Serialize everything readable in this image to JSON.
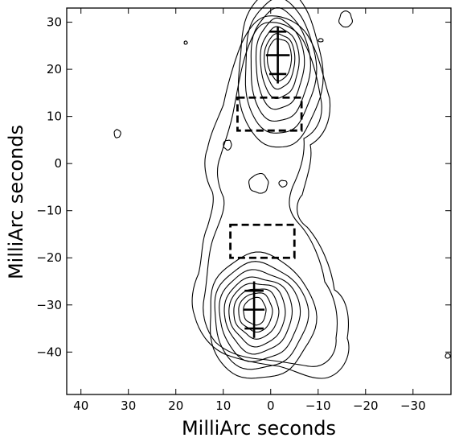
{
  "chart_data": {
    "type": "contour",
    "title": "",
    "xlabel": "MilliArc seconds",
    "ylabel": "MilliArc seconds",
    "xlim": [
      43,
      -38
    ],
    "ylim": [
      -49,
      33
    ],
    "x_ticks": [
      40,
      30,
      20,
      10,
      0,
      -10,
      -20,
      -30
    ],
    "y_ticks": [
      30,
      20,
      10,
      0,
      -10,
      -20,
      -30,
      -40
    ],
    "x_tick_labels": [
      "40",
      "30",
      "20",
      "10",
      "0",
      "−10",
      "−20",
      "−30"
    ],
    "y_tick_labels": [
      "30",
      "20",
      "10",
      "0",
      "−10",
      "−20",
      "−30",
      "−40"
    ],
    "grid": false,
    "components": [
      {
        "id": "north-core",
        "center": [
          -1.5,
          22.5
        ],
        "levels": 7
      },
      {
        "id": "south-core",
        "center": [
          3.5,
          -31.5
        ],
        "levels": 8
      }
    ],
    "regions": [
      {
        "id": "north-box",
        "x": [
          7,
          -6.5
        ],
        "y": [
          7,
          14
        ]
      },
      {
        "id": "south-box",
        "x": [
          8.5,
          -5
        ],
        "y": [
          -20,
          -13
        ]
      }
    ],
    "markers": [
      {
        "id": "north-marker",
        "x": -1.5,
        "y_range": [
          17,
          29
        ],
        "crossbars_y": [
          28,
          23,
          19
        ],
        "half_widths": [
          1.8,
          2.5,
          1.8
        ]
      },
      {
        "id": "south-marker",
        "x": 3.5,
        "y_range": [
          -37,
          -25
        ],
        "crossbars_y": [
          -27,
          -31,
          -35
        ],
        "half_widths": [
          2,
          2.2,
          2
        ]
      }
    ]
  }
}
